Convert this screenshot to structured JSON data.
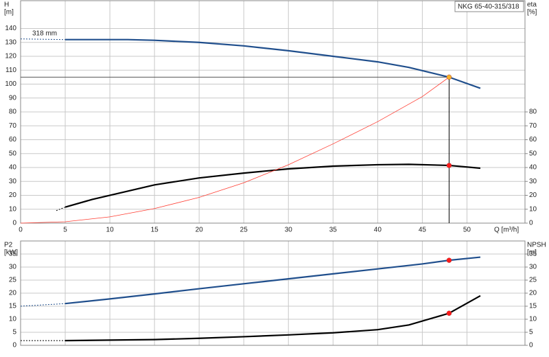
{
  "chart_data": [
    {
      "type": "line",
      "badge": "NKG 65-40-315/318",
      "ylabel": [
        "H",
        "[m]"
      ],
      "y2label": [
        "eta",
        "[%]"
      ],
      "xlabel": "Q [m³/h]",
      "annotation": "318 mm",
      "xlim": [
        0,
        56.5
      ],
      "xticks": [
        0,
        5,
        10,
        15,
        20,
        25,
        30,
        35,
        40,
        45,
        50
      ],
      "xtick_labels": true,
      "ylim": [
        0,
        160
      ],
      "yticks": [
        0,
        10,
        20,
        30,
        40,
        50,
        60,
        70,
        80,
        90,
        100,
        110,
        120,
        130,
        140
      ],
      "y2lim": [
        0,
        160
      ],
      "y2ticks": [
        0,
        10,
        20,
        30,
        40,
        50,
        60,
        70,
        80
      ],
      "grid": true,
      "operating_point": {
        "x": 48,
        "y": 105
      },
      "series": [
        {
          "color": "#1f4e8c",
          "width": 1,
          "dash": true,
          "x": [
            0,
            5
          ],
          "values": [
            132.5,
            132
          ]
        },
        {
          "color": "#1f4e8c",
          "width": 2.2,
          "dash": false,
          "x": [
            5,
            12,
            15,
            20,
            25,
            30,
            35,
            40,
            43.5,
            48,
            51.5
          ],
          "values": [
            132,
            132,
            131.5,
            130,
            127.5,
            124,
            120,
            116,
            112,
            105,
            97
          ]
        },
        {
          "color": "#000000",
          "width": 1,
          "dash": true,
          "axis": "y2",
          "x": [
            4,
            5
          ],
          "values": [
            9,
            11.5
          ]
        },
        {
          "color": "#000000",
          "width": 2.2,
          "dash": false,
          "axis": "y2",
          "x": [
            5,
            8,
            12,
            15,
            20,
            25,
            30,
            35,
            40,
            43.5,
            48,
            51.5
          ],
          "values": [
            11.5,
            17,
            23,
            27.5,
            32.5,
            36,
            39,
            41,
            42,
            42.3,
            41.5,
            39.5
          ]
        },
        {
          "color": "#ff3b30",
          "width": 0.8,
          "dash": false,
          "x": [
            0,
            5,
            10,
            15,
            20,
            25,
            30,
            35,
            40,
            45,
            48
          ],
          "values": [
            0,
            1,
            4.5,
            10.5,
            18.5,
            29,
            42,
            57,
            73,
            91,
            105
          ]
        }
      ],
      "markers": [
        {
          "x": 48,
          "y": 105,
          "color": "#f5b32a"
        },
        {
          "x": 48,
          "y": 41.5,
          "color": "#ff1a1a",
          "axis": "y2"
        }
      ]
    },
    {
      "type": "line",
      "ylabel": [
        "P2",
        "[kW]"
      ],
      "y2label": [
        "NPSH",
        "[m]"
      ],
      "xlim": [
        0,
        56.5
      ],
      "xticks": [
        0,
        5,
        10,
        15,
        20,
        25,
        30,
        35,
        40,
        45,
        50
      ],
      "xtick_labels": false,
      "ylim": [
        0,
        40
      ],
      "yticks": [
        0,
        5,
        10,
        15,
        20,
        25,
        30,
        35
      ],
      "y2lim": [
        0,
        40
      ],
      "y2ticks": [
        0,
        5,
        10,
        15,
        20,
        25,
        30,
        35
      ],
      "grid": true,
      "series": [
        {
          "color": "#1f4e8c",
          "width": 1,
          "dash": true,
          "x": [
            0,
            5
          ],
          "values": [
            15,
            16
          ]
        },
        {
          "color": "#1f4e8c",
          "width": 2.2,
          "dash": false,
          "x": [
            5,
            10,
            15,
            20,
            25,
            30,
            35,
            40,
            45,
            48,
            51.5
          ],
          "values": [
            16,
            17.8,
            19.7,
            21.7,
            23.6,
            25.5,
            27.4,
            29.3,
            31.2,
            32.6,
            33.8
          ]
        },
        {
          "color": "#000000",
          "width": 1,
          "dash": true,
          "axis": "y2",
          "x": [
            0,
            5
          ],
          "values": [
            1.8,
            1.8
          ]
        },
        {
          "color": "#000000",
          "width": 2.2,
          "dash": false,
          "axis": "y2",
          "x": [
            5,
            15,
            20,
            25,
            30,
            35,
            40,
            43.5,
            48,
            51.5
          ],
          "values": [
            1.8,
            2.2,
            2.7,
            3.3,
            4.0,
            4.8,
            6.0,
            7.8,
            12.3,
            19
          ]
        }
      ],
      "markers": [
        {
          "x": 48,
          "y": 32.6,
          "color": "#ff1a1a"
        },
        {
          "x": 48,
          "y": 12.3,
          "color": "#ff1a1a",
          "axis": "y2"
        }
      ]
    }
  ]
}
